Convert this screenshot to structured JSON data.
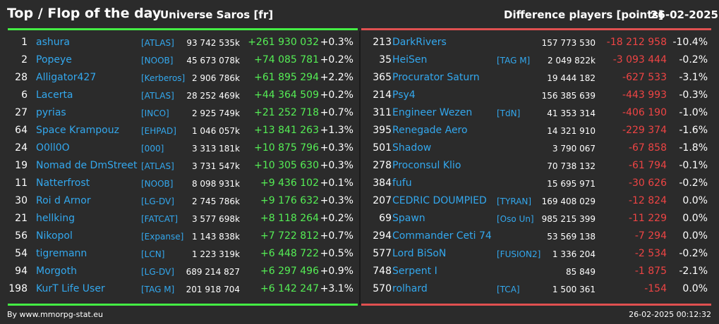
{
  "header": {
    "title": "Top / Flop of the day",
    "subtitle": "Universe Saros [fr]",
    "difference_label": "Difference players [points]",
    "date": "26-02-2025"
  },
  "colors": {
    "top": "#44ee44",
    "flop": "#e05050",
    "link": "#33a8ee"
  },
  "top": [
    {
      "rank": "1",
      "name": "ashura",
      "tag": "[ATLAS]",
      "score": "93 742 535k",
      "delta": "+261 930 032",
      "pct": "+0.3%"
    },
    {
      "rank": "2",
      "name": "Popeye",
      "tag": "[NOOB]",
      "score": "45 673 078k",
      "delta": "+74 085 781",
      "pct": "+0.2%"
    },
    {
      "rank": "28",
      "name": "Alligator427",
      "tag": "[Kerberos]",
      "score": "2 906 786k",
      "delta": "+61 895 294",
      "pct": "+2.2%"
    },
    {
      "rank": "6",
      "name": "Lacerta",
      "tag": "[ATLAS]",
      "score": "28 252 469k",
      "delta": "+44 364 509",
      "pct": "+0.2%"
    },
    {
      "rank": "27",
      "name": "pyrias",
      "tag": "[INCO]",
      "score": "2 925 749k",
      "delta": "+21 252 718",
      "pct": "+0.7%"
    },
    {
      "rank": "64",
      "name": "Space Krampouz",
      "tag": "[EHPAD]",
      "score": "1 046 057k",
      "delta": "+13 841 263",
      "pct": "+1.3%"
    },
    {
      "rank": "24",
      "name": "O0ll0O",
      "tag": "[000]",
      "score": "3 313 181k",
      "delta": "+10 875 796",
      "pct": "+0.3%"
    },
    {
      "rank": "19",
      "name": "Nomad de DmStreet",
      "tag": "[ATLAS]",
      "score": "3 731 547k",
      "delta": "+10 305 630",
      "pct": "+0.3%"
    },
    {
      "rank": "11",
      "name": "Natterfrost",
      "tag": "[NOOB]",
      "score": "8 098 931k",
      "delta": "+9 436 102",
      "pct": "+0.1%"
    },
    {
      "rank": "30",
      "name": "Roi d Arnor",
      "tag": "[LG-DV]",
      "score": "2 745 786k",
      "delta": "+9 176 632",
      "pct": "+0.3%"
    },
    {
      "rank": "21",
      "name": "hellking",
      "tag": "[FATCAT]",
      "score": "3 577 698k",
      "delta": "+8 118 264",
      "pct": "+0.2%"
    },
    {
      "rank": "56",
      "name": "Nikopol",
      "tag": "[Expanse]",
      "score": "1 143 838k",
      "delta": "+7 722 812",
      "pct": "+0.7%"
    },
    {
      "rank": "54",
      "name": "tigremann",
      "tag": "[LCN]",
      "score": "1 223 319k",
      "delta": "+6 448 722",
      "pct": "+0.5%"
    },
    {
      "rank": "94",
      "name": "Morgoth",
      "tag": "[LG-DV]",
      "score": "689 214 827",
      "delta": "+6 297 496",
      "pct": "+0.9%"
    },
    {
      "rank": "198",
      "name": "KurT Life User",
      "tag": "[TAG M]",
      "score": "201 918 704",
      "delta": "+6 142 247",
      "pct": "+3.1%"
    }
  ],
  "flop": [
    {
      "rank": "213",
      "name": "DarkRivers",
      "tag": "",
      "score": "157 773 530",
      "delta": "-18 212 958",
      "pct": "-10.4%"
    },
    {
      "rank": "35",
      "name": "HeiSen",
      "tag": "[TAG M]",
      "score": "2 049 822k",
      "delta": "-3 093 444",
      "pct": "-0.2%"
    },
    {
      "rank": "365",
      "name": "Procurator Saturn",
      "tag": "",
      "score": "19 444 182",
      "delta": "-627 533",
      "pct": "-3.1%"
    },
    {
      "rank": "214",
      "name": "Psy4",
      "tag": "",
      "score": "156 385 639",
      "delta": "-443 993",
      "pct": "-0.3%"
    },
    {
      "rank": "311",
      "name": "Engineer Wezen",
      "tag": "[TdN]",
      "score": "41 353 314",
      "delta": "-406 190",
      "pct": "-1.0%"
    },
    {
      "rank": "395",
      "name": "Renegade Aero",
      "tag": "",
      "score": "14 321 910",
      "delta": "-229 374",
      "pct": "-1.6%"
    },
    {
      "rank": "501",
      "name": "Shadow",
      "tag": "",
      "score": "3 790 067",
      "delta": "-67 858",
      "pct": "-1.8%"
    },
    {
      "rank": "278",
      "name": "Proconsul Klio",
      "tag": "",
      "score": "70 738 132",
      "delta": "-61 794",
      "pct": "-0.1%"
    },
    {
      "rank": "384",
      "name": "fufu",
      "tag": "",
      "score": "15 695 971",
      "delta": "-30 626",
      "pct": "-0.2%"
    },
    {
      "rank": "207",
      "name": "CEDRIC DOUMPIED",
      "tag": "[TYRAN]",
      "score": "169 408 029",
      "delta": "-12 824",
      "pct": "0.0%"
    },
    {
      "rank": "69",
      "name": "Spawn",
      "tag": "[Oso Un]",
      "score": "985 215 399",
      "delta": "-11 229",
      "pct": "0.0%"
    },
    {
      "rank": "294",
      "name": "Commander Ceti 74",
      "tag": "",
      "score": "53 569 138",
      "delta": "-7 294",
      "pct": "0.0%"
    },
    {
      "rank": "577",
      "name": "Lord BiSoN",
      "tag": "[FUSION2]",
      "score": "1 336 204",
      "delta": "-2 534",
      "pct": "-0.2%"
    },
    {
      "rank": "748",
      "name": "Serpent I",
      "tag": "",
      "score": "85 849",
      "delta": "-1 875",
      "pct": "-2.1%"
    },
    {
      "rank": "570",
      "name": "rolhard",
      "tag": "[TCA]",
      "score": "1 500 361",
      "delta": "-154",
      "pct": "0.0%"
    }
  ],
  "footer": {
    "source": "By www.mmorpg-stat.eu",
    "timestamp": "26-02-2025 00:12:32"
  }
}
